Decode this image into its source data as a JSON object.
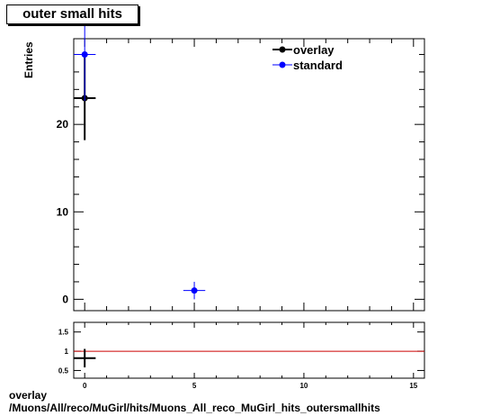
{
  "chart_data": {
    "type": "scatter",
    "title": "outer small hits",
    "ylabel": "Entries",
    "xlim": [
      -0.5,
      15.5
    ],
    "ylim": [
      -1.3,
      29.8
    ],
    "x_ticks": [
      0,
      5,
      10,
      15
    ],
    "y_ticks": [
      0,
      10,
      20
    ],
    "grid": false,
    "legend_position": "top-right",
    "series": [
      {
        "name": "overlay",
        "color": "#000000",
        "points": [
          {
            "x": 0,
            "y": 23,
            "err": 4.8
          }
        ]
      },
      {
        "name": "standard",
        "color": "#0000ff",
        "points": [
          {
            "x": 0,
            "y": 28,
            "err": 5.3
          },
          {
            "x": 5,
            "y": 1,
            "err": 1
          }
        ]
      }
    ],
    "ratio": {
      "ylim": [
        0.3,
        1.75
      ],
      "y_ticks": [
        0.5,
        1,
        1.5
      ],
      "reference": 1,
      "reference_color": "#cc0000",
      "points": [
        {
          "x": 0,
          "y": 0.82,
          "err": 0.24
        }
      ]
    }
  },
  "footer": {
    "line1": "overlay",
    "line2": "/Muons/All/reco/MuGirl/hits/Muons_All_reco_MuGirl_hits_outersmallhits"
  }
}
